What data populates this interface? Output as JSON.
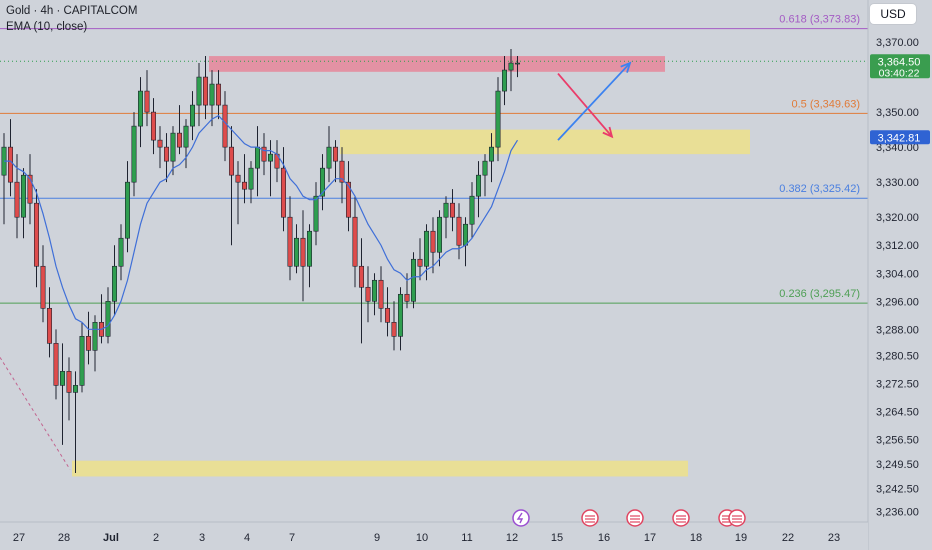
{
  "header": {
    "title": "Gold · 4h · CAPITALCOM",
    "indicator": "EMA (10, close)",
    "currency_button": "USD"
  },
  "colors": {
    "background": "#cfd3da",
    "bull": "#2f9e4f",
    "bear": "#de4c4c",
    "ema": "#3f6fd8",
    "fib_618": "#a45bc4",
    "fib_5": "#e07b39",
    "fib_382": "#4a7fe0",
    "fib_236": "#4f9f55",
    "zone_yellow": "#ede08a",
    "zone_red": "#e6869a",
    "arrow_red": "#ea3c6a",
    "arrow_blue": "#3b82f0"
  },
  "chart_data": {
    "type": "candlestick",
    "title": "Gold · 4h · CAPITALCOM",
    "y_axis": {
      "range": [
        3233,
        3382
      ],
      "ticks": [
        "3,370.00",
        "3,350.00",
        "3,340.00",
        "3,330.00",
        "3,320.00",
        "3,312.00",
        "3,304.00",
        "3,296.00",
        "3,288.00",
        "3,280.50",
        "3,272.50",
        "3,264.50",
        "3,256.50",
        "3,249.50",
        "3,242.50",
        "3,236.00"
      ]
    },
    "x_axis": {
      "ticks": [
        "27",
        "28",
        "Jul",
        "2",
        "3",
        "4",
        "7",
        "9",
        "10",
        "11",
        "12",
        "15",
        "16",
        "17",
        "18",
        "19",
        "22",
        "23"
      ]
    },
    "candles": [
      {
        "o": 3332,
        "h": 3344,
        "l": 3318,
        "c": 3340
      },
      {
        "o": 3340,
        "h": 3348,
        "l": 3326,
        "c": 3330
      },
      {
        "o": 3330,
        "h": 3338,
        "l": 3314,
        "c": 3320
      },
      {
        "o": 3320,
        "h": 3334,
        "l": 3314,
        "c": 3332
      },
      {
        "o": 3332,
        "h": 3338,
        "l": 3318,
        "c": 3324
      },
      {
        "o": 3324,
        "h": 3328,
        "l": 3300,
        "c": 3306
      },
      {
        "o": 3306,
        "h": 3312,
        "l": 3290,
        "c": 3294
      },
      {
        "o": 3294,
        "h": 3300,
        "l": 3280,
        "c": 3284
      },
      {
        "o": 3284,
        "h": 3288,
        "l": 3268,
        "c": 3272
      },
      {
        "o": 3272,
        "h": 3284,
        "l": 3255,
        "c": 3276
      },
      {
        "o": 3276,
        "h": 3280,
        "l": 3262,
        "c": 3270
      },
      {
        "o": 3270,
        "h": 3276,
        "l": 3247,
        "c": 3272
      },
      {
        "o": 3272,
        "h": 3290,
        "l": 3270,
        "c": 3286
      },
      {
        "o": 3286,
        "h": 3293,
        "l": 3278,
        "c": 3282
      },
      {
        "o": 3282,
        "h": 3292,
        "l": 3276,
        "c": 3290
      },
      {
        "o": 3290,
        "h": 3298,
        "l": 3284,
        "c": 3286
      },
      {
        "o": 3286,
        "h": 3300,
        "l": 3284,
        "c": 3296
      },
      {
        "o": 3296,
        "h": 3312,
        "l": 3292,
        "c": 3306
      },
      {
        "o": 3306,
        "h": 3318,
        "l": 3302,
        "c": 3314
      },
      {
        "o": 3314,
        "h": 3336,
        "l": 3310,
        "c": 3330
      },
      {
        "o": 3330,
        "h": 3350,
        "l": 3326,
        "c": 3346
      },
      {
        "o": 3346,
        "h": 3360,
        "l": 3340,
        "c": 3356
      },
      {
        "o": 3356,
        "h": 3362,
        "l": 3346,
        "c": 3350
      },
      {
        "o": 3350,
        "h": 3354,
        "l": 3338,
        "c": 3342
      },
      {
        "o": 3342,
        "h": 3346,
        "l": 3334,
        "c": 3340
      },
      {
        "o": 3340,
        "h": 3344,
        "l": 3330,
        "c": 3336
      },
      {
        "o": 3336,
        "h": 3346,
        "l": 3332,
        "c": 3344
      },
      {
        "o": 3344,
        "h": 3352,
        "l": 3338,
        "c": 3340
      },
      {
        "o": 3340,
        "h": 3348,
        "l": 3334,
        "c": 3346
      },
      {
        "o": 3346,
        "h": 3356,
        "l": 3342,
        "c": 3352
      },
      {
        "o": 3352,
        "h": 3364,
        "l": 3346,
        "c": 3360
      },
      {
        "o": 3360,
        "h": 3366,
        "l": 3348,
        "c": 3352
      },
      {
        "o": 3352,
        "h": 3362,
        "l": 3346,
        "c": 3358
      },
      {
        "o": 3358,
        "h": 3362,
        "l": 3348,
        "c": 3352
      },
      {
        "o": 3352,
        "h": 3356,
        "l": 3336,
        "c": 3340
      },
      {
        "o": 3340,
        "h": 3346,
        "l": 3312,
        "c": 3332
      },
      {
        "o": 3332,
        "h": 3336,
        "l": 3318,
        "c": 3330
      },
      {
        "o": 3330,
        "h": 3338,
        "l": 3324,
        "c": 3328
      },
      {
        "o": 3328,
        "h": 3336,
        "l": 3324,
        "c": 3334
      },
      {
        "o": 3334,
        "h": 3346,
        "l": 3326,
        "c": 3340
      },
      {
        "o": 3340,
        "h": 3344,
        "l": 3332,
        "c": 3336
      },
      {
        "o": 3336,
        "h": 3342,
        "l": 3326,
        "c": 3338
      },
      {
        "o": 3338,
        "h": 3342,
        "l": 3330,
        "c": 3334
      },
      {
        "o": 3334,
        "h": 3340,
        "l": 3316,
        "c": 3320
      },
      {
        "o": 3320,
        "h": 3326,
        "l": 3302,
        "c": 3306
      },
      {
        "o": 3306,
        "h": 3318,
        "l": 3304,
        "c": 3314
      },
      {
        "o": 3314,
        "h": 3322,
        "l": 3296,
        "c": 3306
      },
      {
        "o": 3306,
        "h": 3318,
        "l": 3300,
        "c": 3316
      },
      {
        "o": 3316,
        "h": 3330,
        "l": 3312,
        "c": 3326
      },
      {
        "o": 3326,
        "h": 3338,
        "l": 3322,
        "c": 3334
      },
      {
        "o": 3334,
        "h": 3346,
        "l": 3330,
        "c": 3340
      },
      {
        "o": 3340,
        "h": 3342,
        "l": 3330,
        "c": 3336
      },
      {
        "o": 3336,
        "h": 3340,
        "l": 3324,
        "c": 3330
      },
      {
        "o": 3330,
        "h": 3336,
        "l": 3316,
        "c": 3320
      },
      {
        "o": 3320,
        "h": 3326,
        "l": 3300,
        "c": 3306
      },
      {
        "o": 3306,
        "h": 3314,
        "l": 3284,
        "c": 3300
      },
      {
        "o": 3300,
        "h": 3306,
        "l": 3290,
        "c": 3296
      },
      {
        "o": 3296,
        "h": 3304,
        "l": 3292,
        "c": 3302
      },
      {
        "o": 3302,
        "h": 3306,
        "l": 3290,
        "c": 3294
      },
      {
        "o": 3294,
        "h": 3300,
        "l": 3286,
        "c": 3290
      },
      {
        "o": 3290,
        "h": 3296,
        "l": 3282,
        "c": 3286
      },
      {
        "o": 3286,
        "h": 3300,
        "l": 3282,
        "c": 3298
      },
      {
        "o": 3298,
        "h": 3304,
        "l": 3294,
        "c": 3296
      },
      {
        "o": 3296,
        "h": 3310,
        "l": 3294,
        "c": 3308
      },
      {
        "o": 3308,
        "h": 3314,
        "l": 3302,
        "c": 3306
      },
      {
        "o": 3306,
        "h": 3318,
        "l": 3302,
        "c": 3316
      },
      {
        "o": 3316,
        "h": 3320,
        "l": 3304,
        "c": 3310
      },
      {
        "o": 3310,
        "h": 3322,
        "l": 3306,
        "c": 3320
      },
      {
        "o": 3320,
        "h": 3326,
        "l": 3314,
        "c": 3324
      },
      {
        "o": 3324,
        "h": 3328,
        "l": 3316,
        "c": 3320
      },
      {
        "o": 3320,
        "h": 3324,
        "l": 3308,
        "c": 3312
      },
      {
        "o": 3312,
        "h": 3320,
        "l": 3306,
        "c": 3318
      },
      {
        "o": 3318,
        "h": 3330,
        "l": 3314,
        "c": 3326
      },
      {
        "o": 3326,
        "h": 3336,
        "l": 3320,
        "c": 3332
      },
      {
        "o": 3332,
        "h": 3338,
        "l": 3326,
        "c": 3336
      },
      {
        "o": 3336,
        "h": 3344,
        "l": 3330,
        "c": 3340
      },
      {
        "o": 3340,
        "h": 3360,
        "l": 3336,
        "c": 3356
      },
      {
        "o": 3356,
        "h": 3366,
        "l": 3352,
        "c": 3362
      },
      {
        "o": 3362,
        "h": 3368,
        "l": 3356,
        "c": 3364
      },
      {
        "o": 3364,
        "h": 3366,
        "l": 3360,
        "c": 3364
      }
    ],
    "ema": [
      3336,
      3336,
      3334,
      3333,
      3331,
      3327,
      3321,
      3314,
      3306,
      3300,
      3295,
      3291,
      3290,
      3288,
      3288,
      3288,
      3289,
      3292,
      3296,
      3302,
      3310,
      3318,
      3324,
      3327,
      3330,
      3331,
      3334,
      3335,
      3337,
      3340,
      3344,
      3346,
      3348,
      3349,
      3347,
      3345,
      3343,
      3341,
      3340,
      3340,
      3339,
      3339,
      3338,
      3335,
      3331,
      3329,
      3326,
      3325,
      3325,
      3327,
      3329,
      3331,
      3331,
      3329,
      3326,
      3322,
      3318,
      3315,
      3312,
      3308,
      3305,
      3304,
      3302,
      3303,
      3303,
      3305,
      3306,
      3308,
      3310,
      3311,
      3311,
      3312,
      3314,
      3317,
      3320,
      3323,
      3328,
      3333,
      3339,
      3342
    ],
    "fib_levels": [
      {
        "label": "0.618 (3,373.83)",
        "value": 3373.83
      },
      {
        "label": "0.5 (3,349.63)",
        "value": 3349.63
      },
      {
        "label": "0.382 (3,325.42)",
        "value": 3325.42
      },
      {
        "label": "0.236 (3,295.47)",
        "value": 3295.47
      }
    ],
    "zones": [
      {
        "from": 3361.5,
        "to": 3366,
        "kind": "resistance"
      },
      {
        "from": 3338,
        "to": 3345,
        "kind": "demand"
      },
      {
        "from": 3246,
        "to": 3250.5,
        "kind": "demand"
      }
    ],
    "current_price": {
      "label": "3,364.50",
      "countdown": "03:40:22",
      "value": 3364.5
    },
    "ema_marker": {
      "label": "3,342.81",
      "value": 3342.81
    },
    "events": [
      {
        "icon": "lightning-event-icon",
        "x_label": "12"
      },
      {
        "icon": "us-flag-event-icon",
        "x_label": "15"
      },
      {
        "icon": "us-flag-event-icon",
        "x_label": "16"
      },
      {
        "icon": "us-flag-event-icon",
        "x_label": "17"
      },
      {
        "icon": "us-flag-event-icon",
        "x_label": "18"
      },
      {
        "icon": "us-flag-event-icon",
        "x_label": "19"
      }
    ],
    "annotations": [
      {
        "kind": "arrow",
        "color": "red",
        "direction": "down"
      },
      {
        "kind": "arrow",
        "color": "blue",
        "direction": "up"
      }
    ]
  }
}
